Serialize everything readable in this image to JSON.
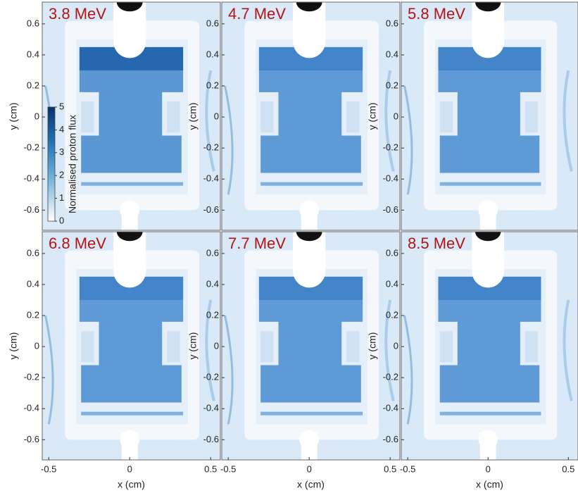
{
  "chart_data": [
    {
      "type": "image",
      "title": "3.8 MeV",
      "ylabel": "y (cm)",
      "xlim": [
        -0.54,
        0.56
      ],
      "ylim": [
        -0.73,
        0.74
      ],
      "yticks": [
        0.6,
        0.4,
        0.2,
        0,
        -0.2,
        -0.4,
        -0.6
      ],
      "colorbar": {
        "label": "Normalised proton flux",
        "lim": [
          0,
          5
        ],
        "ticks": [
          0,
          1,
          2,
          3,
          4,
          5
        ],
        "color": "#08306b"
      }
    },
    {
      "type": "image",
      "title": "4.7 MeV",
      "ylabel": "y (cm)",
      "xlim": [
        -0.54,
        0.56
      ],
      "ylim": [
        -0.73,
        0.74
      ],
      "yticks": [
        0.6,
        0.4,
        0.2,
        0,
        -0.2,
        -0.4,
        -0.6
      ]
    },
    {
      "type": "image",
      "title": "5.8 MeV",
      "ylabel": "y (cm)",
      "xlim": [
        -0.54,
        0.56
      ],
      "ylim": [
        -0.73,
        0.74
      ],
      "yticks": [
        0.6,
        0.4,
        0.2,
        0,
        -0.2,
        -0.4,
        -0.6
      ]
    },
    {
      "type": "image",
      "title": "6.8 MeV",
      "ylabel": "y (cm)",
      "xlabel": "x (cm)",
      "xlim": [
        -0.54,
        0.56
      ],
      "ylim": [
        -0.73,
        0.74
      ],
      "yticks": [
        0.6,
        0.4,
        0.2,
        0,
        -0.2,
        -0.4,
        -0.6
      ],
      "xticks": [
        -0.5,
        0,
        0.5
      ]
    },
    {
      "type": "image",
      "title": "7.7 MeV",
      "ylabel": "y (cm)",
      "xlabel": "x (cm)",
      "xlim": [
        -0.54,
        0.56
      ],
      "ylim": [
        -0.73,
        0.74
      ],
      "yticks": [
        0.6,
        0.4,
        0.2,
        0,
        -0.2,
        -0.4,
        -0.6
      ],
      "xticks": [
        -0.5,
        0,
        0.5
      ]
    },
    {
      "type": "image",
      "title": "8.5 MeV",
      "ylabel": "y (cm)",
      "xlabel": "x (cm)",
      "xlim": [
        -0.54,
        0.56
      ],
      "ylim": [
        -0.73,
        0.74
      ],
      "yticks": [
        0.6,
        0.4,
        0.2,
        0,
        -0.2,
        -0.4,
        -0.6
      ],
      "xticks": [
        -0.5,
        0,
        0.5
      ]
    }
  ]
}
